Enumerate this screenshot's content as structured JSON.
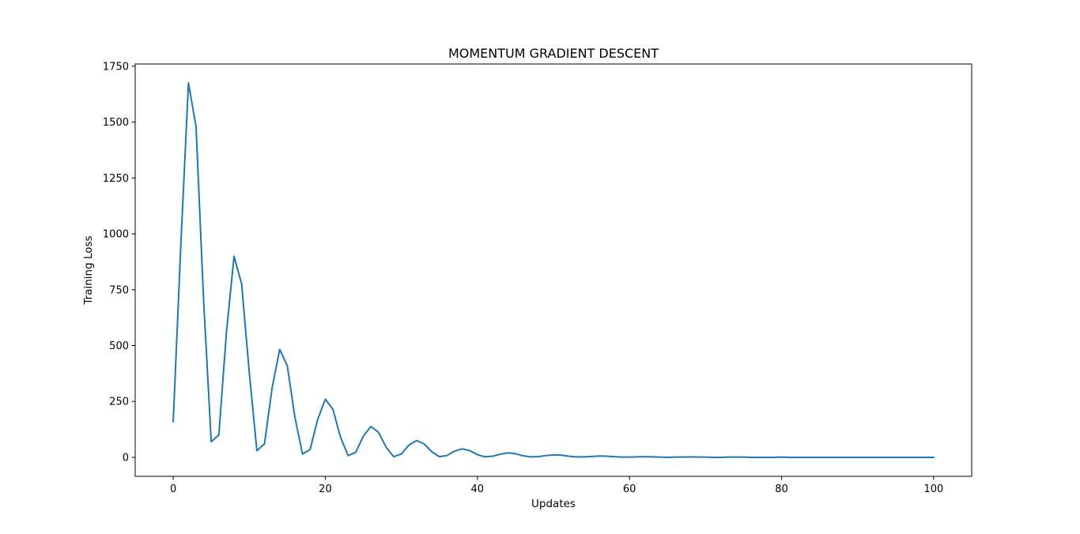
{
  "chart_data": {
    "type": "line",
    "title": "MOMENTUM GRADIENT DESCENT",
    "xlabel": "Updates",
    "ylabel": "Training Loss",
    "xlim": [
      -5,
      105
    ],
    "ylim": [
      -85,
      1760
    ],
    "xticks": [
      0,
      20,
      40,
      60,
      80,
      100
    ],
    "yticks": [
      0,
      250,
      500,
      750,
      1000,
      1250,
      1500,
      1750
    ],
    "grid": false,
    "series": [
      {
        "color": "#1f77b4",
        "x": [
          0,
          1,
          2,
          3,
          4,
          5,
          6,
          7,
          8,
          9,
          10,
          11,
          12,
          13,
          14,
          15,
          16,
          17,
          18,
          19,
          20,
          21,
          22,
          23,
          24,
          25,
          26,
          27,
          28,
          29,
          30,
          31,
          32,
          33,
          34,
          35,
          36,
          37,
          38,
          39,
          40,
          41,
          42,
          43,
          44,
          45,
          46,
          47,
          48,
          49,
          50,
          51,
          52,
          53,
          54,
          55,
          56,
          57,
          58,
          59,
          60,
          61,
          62,
          63,
          64,
          65,
          66,
          67,
          68,
          69,
          70,
          71,
          72,
          73,
          74,
          75,
          76,
          77,
          78,
          79,
          80,
          81,
          82,
          83,
          84,
          85,
          86,
          87,
          88,
          89,
          90,
          91,
          92,
          93,
          94,
          95,
          96,
          97,
          98,
          99,
          100
        ],
        "y": [
          160,
          950,
          1675,
          1480,
          700,
          70,
          100,
          560,
          900,
          775,
          380,
          30,
          60,
          310,
          483,
          410,
          180,
          15,
          35,
          170,
          260,
          215,
          90,
          8,
          22,
          95,
          138,
          112,
          45,
          3,
          15,
          55,
          75,
          60,
          25,
          3,
          8,
          28,
          38,
          30,
          12,
          2,
          5,
          14,
          20,
          16,
          7,
          2,
          3,
          8,
          11,
          10,
          5,
          2,
          2,
          4,
          6,
          5,
          3,
          1,
          1,
          2,
          3,
          2,
          1,
          0,
          1,
          1,
          2,
          1,
          1,
          0,
          0,
          1,
          1,
          1,
          0,
          0,
          0,
          0,
          1,
          0,
          0,
          0,
          0,
          0,
          0,
          0,
          0,
          0,
          0,
          0,
          0,
          0,
          0,
          0,
          0,
          0,
          0,
          0,
          0
        ]
      }
    ]
  }
}
